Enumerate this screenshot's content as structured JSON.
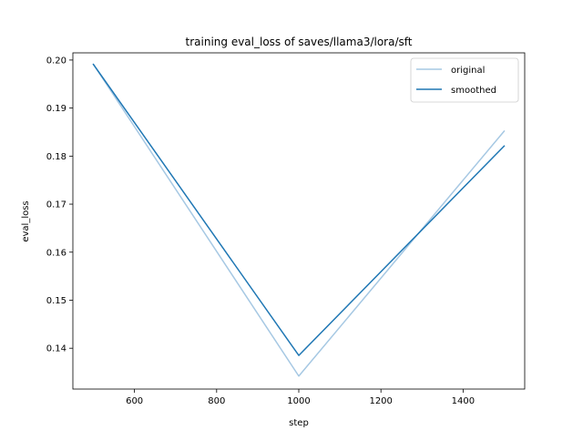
{
  "chart_data": {
    "type": "line",
    "title": "training eval_loss of saves/llama3/lora/sft",
    "xlabel": "step",
    "ylabel": "eval_loss",
    "xlim": [
      450,
      1550
    ],
    "ylim": [
      0.1315,
      0.2015
    ],
    "x_ticks": [
      600,
      800,
      1000,
      1200,
      1400
    ],
    "x_tick_labels": [
      "600",
      "800",
      "1000",
      "1200",
      "1400"
    ],
    "y_ticks": [
      0.14,
      0.15,
      0.16,
      0.17,
      0.18,
      0.19,
      0.2
    ],
    "y_tick_labels": [
      "0.14",
      "0.15",
      "0.16",
      "0.17",
      "0.18",
      "0.19",
      "0.20"
    ],
    "grid": false,
    "legend_position": "top-right",
    "series": [
      {
        "name": "original",
        "color": "#a6c8e3",
        "x": [
          500,
          1000,
          1500
        ],
        "y": [
          0.1991,
          0.1342,
          0.1852
        ]
      },
      {
        "name": "smoothed",
        "color": "#1f77b4",
        "x": [
          500,
          1000,
          1500
        ],
        "y": [
          0.1991,
          0.1385,
          0.1821
        ]
      }
    ]
  }
}
